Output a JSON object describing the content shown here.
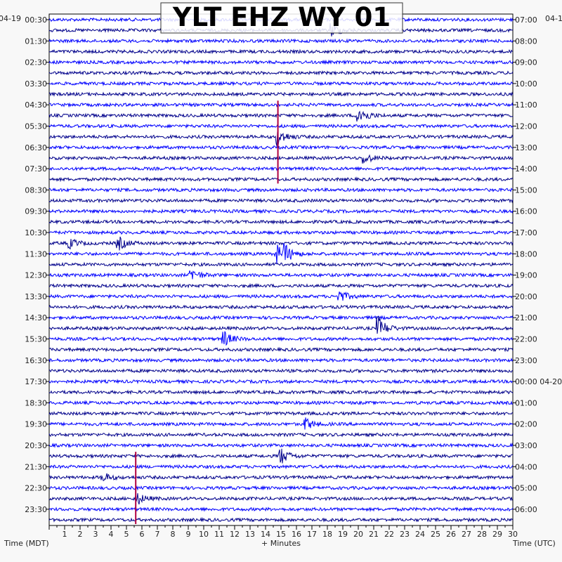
{
  "chart_data": {
    "type": "line",
    "title": "YLT EHZ WY 01",
    "xlabel": "+ Minutes",
    "left_axis_title": "Time (MDT)",
    "right_axis_title": "Time (UTC)",
    "left_date": "04-19",
    "right_date": "04-1",
    "right_date_change_label": "04-20",
    "x_ticks": [
      "1",
      "2",
      "3",
      "4",
      "5",
      "6",
      "7",
      "8",
      "9",
      "10",
      "11",
      "12",
      "13",
      "14",
      "15",
      "16",
      "17",
      "18",
      "19",
      "20",
      "21",
      "22",
      "23",
      "24",
      "25",
      "26",
      "27",
      "28",
      "29",
      "30"
    ],
    "xlim": [
      0,
      30
    ],
    "left_hours": [
      "00:30",
      "01:30",
      "02:30",
      "03:30",
      "04:30",
      "05:30",
      "06:30",
      "07:30",
      "08:30",
      "09:30",
      "10:30",
      "11:30",
      "12:30",
      "13:30",
      "14:30",
      "15:30",
      "16:30",
      "17:30",
      "18:30",
      "19:30",
      "20:30",
      "21:30",
      "22:30",
      "23:30"
    ],
    "right_hours": [
      "07:00",
      "08:00",
      "09:00",
      "10:00",
      "11:00",
      "12:00",
      "13:00",
      "14:00",
      "15:00",
      "16:00",
      "17:00",
      "18:00",
      "19:00",
      "20:00",
      "21:00",
      "22:00",
      "23:00",
      "00:00",
      "01:00",
      "02:00",
      "03:00",
      "04:00",
      "05:00",
      "06:00"
    ],
    "trace_count": 48,
    "trace_colors": [
      "#0000ff",
      "#00008b"
    ],
    "events": [
      {
        "trace": 1,
        "minute": 18.3,
        "amp": 10
      },
      {
        "trace": 9,
        "minute": 20.0,
        "amp": 15
      },
      {
        "trace": 11,
        "minute": 14.8,
        "amp": 12
      },
      {
        "trace": 13,
        "minute": 20.4,
        "amp": 7
      },
      {
        "trace": 21,
        "minute": 1.3,
        "amp": 7
      },
      {
        "trace": 21,
        "minute": 4.5,
        "amp": 9
      },
      {
        "trace": 22,
        "minute": 14.7,
        "amp": 14
      },
      {
        "trace": 22,
        "minute": 15.3,
        "amp": 9
      },
      {
        "trace": 24,
        "minute": 9.2,
        "amp": 9
      },
      {
        "trace": 26,
        "minute": 18.8,
        "amp": 8
      },
      {
        "trace": 29,
        "minute": 21.3,
        "amp": 16
      },
      {
        "trace": 30,
        "minute": 11.3,
        "amp": 11
      },
      {
        "trace": 38,
        "minute": 16.6,
        "amp": 8
      },
      {
        "trace": 41,
        "minute": 15.0,
        "amp": 11
      },
      {
        "trace": 43,
        "minute": 3.5,
        "amp": 6
      },
      {
        "trace": 45,
        "minute": 5.7,
        "amp": 8
      }
    ],
    "markers": [
      {
        "minute": 14.8,
        "from_trace": 8,
        "to_trace": 15,
        "color": "#b00040"
      },
      {
        "minute": 5.6,
        "from_trace": 41,
        "to_trace": 47,
        "color": "#b00040"
      }
    ]
  }
}
